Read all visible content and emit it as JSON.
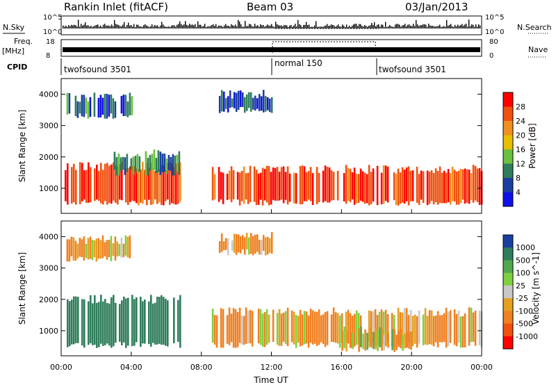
{
  "header": {
    "station": "Rankin Inlet (fitACF)",
    "beam": "Beam 03",
    "date": "03/Jan/2013"
  },
  "top_panels": {
    "nsky_label": "N.Sky",
    "nsearch_label": "N.Search",
    "freq_label_line1": "Freq.",
    "freq_label_line2": "[MHz]",
    "nave_label": "Nave",
    "cpid_label": "CPID",
    "nsky_ticks": [
      "10^5",
      "10^0"
    ],
    "freq_ticks": [
      "18",
      "8"
    ],
    "nave_ticks": [
      "80",
      "0"
    ]
  },
  "cpid_segments": [
    {
      "label": "twofsound 3501",
      "start_hour": 0,
      "end_hour": 12
    },
    {
      "label": "normal 150",
      "start_hour": 12,
      "end_hour": 18
    },
    {
      "label": "twofsound 3501",
      "start_hour": 18,
      "end_hour": 24
    }
  ],
  "colors": {
    "power_scale": [
      "#1010e8",
      "#1a3fa0",
      "#2e7d5b",
      "#6cc040",
      "#e6c000",
      "#f09020",
      "#f05010",
      "#ff0000"
    ],
    "velocity_scale": [
      "#1a3fa0",
      "#2e7d5b",
      "#4fa850",
      "#7fd040",
      "#c8c8c8",
      "#e6a020",
      "#f08020",
      "#f05010",
      "#ff0000"
    ]
  },
  "chart_data": [
    {
      "type": "heatmap",
      "name": "power",
      "ylabel": "Slant Range [km]",
      "ylim": [
        200,
        4500
      ],
      "yticks": [
        1000,
        2000,
        3000,
        4000
      ],
      "colorbar_label": "Power [dB]",
      "colorbar_ticks": [
        "4",
        "8",
        "12",
        "16",
        "20",
        "24",
        "28"
      ],
      "bands": [
        {
          "start": 0.2,
          "end": 6.8,
          "low": 550,
          "high": 1700,
          "power_db": 28
        },
        {
          "start": 8.6,
          "end": 24.0,
          "low": 550,
          "high": 1600,
          "power_db": 28
        },
        {
          "start": 3.0,
          "end": 6.8,
          "low": 1500,
          "high": 2100,
          "power_db": 16
        },
        {
          "start": 0.3,
          "end": 4.0,
          "low": 3300,
          "high": 3900,
          "power_db": 14
        },
        {
          "start": 9.0,
          "end": 12.0,
          "low": 3500,
          "high": 4000,
          "power_db": 12
        }
      ]
    },
    {
      "type": "heatmap",
      "name": "velocity",
      "ylabel": "Slant Range [km]",
      "ylim": [
        200,
        4500
      ],
      "yticks": [
        1000,
        2000,
        3000,
        4000
      ],
      "xlabel": "Time UT",
      "xticks": [
        "00:00",
        "04:00",
        "08:00",
        "12:00",
        "16:00",
        "20:00",
        "00:00"
      ],
      "colorbar_label": "Velocity [m s^-1]",
      "colorbar_ticks": [
        "1000",
        "500",
        "100",
        "25",
        "-25",
        "-100",
        "-500",
        "-1000"
      ],
      "bands": [
        {
          "start": 0.2,
          "end": 6.8,
          "low": 550,
          "high": 2000,
          "velocity": 500
        },
        {
          "start": 8.6,
          "end": 24.0,
          "low": 550,
          "high": 1600,
          "velocity": -100
        },
        {
          "start": 16.0,
          "end": 20.0,
          "low": 400,
          "high": 1000,
          "velocity": 0
        },
        {
          "start": 0.3,
          "end": 4.0,
          "low": 3300,
          "high": 3900,
          "velocity": -100
        },
        {
          "start": 9.0,
          "end": 12.0,
          "low": 3500,
          "high": 4000,
          "velocity": -100
        }
      ]
    }
  ]
}
